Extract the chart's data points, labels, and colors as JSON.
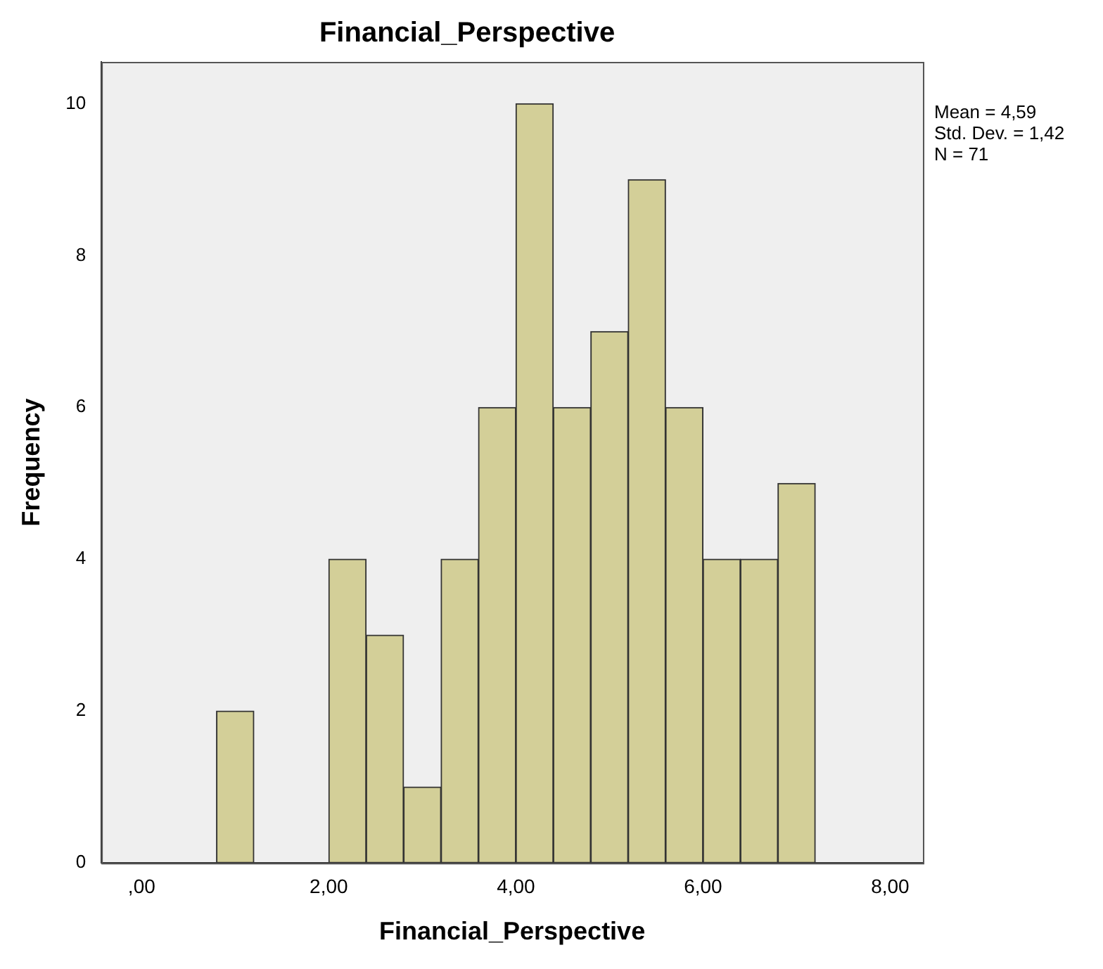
{
  "chart_data": {
    "type": "histogram",
    "title": "Financial_Perspective",
    "xlabel": "Financial_Perspective",
    "ylabel": "Frequency",
    "bins": [
      0.8,
      1.2,
      1.6,
      2.0,
      2.4,
      2.8,
      3.2,
      3.6,
      4.0,
      4.4,
      4.8,
      5.2,
      5.6,
      6.0,
      6.4,
      6.8,
      7.2
    ],
    "values": [
      2,
      0,
      0,
      4,
      3,
      1,
      4,
      6,
      10,
      6,
      7,
      9,
      6,
      4,
      4,
      5
    ],
    "color": "#d3cf98",
    "xlim": [
      -0.43,
      8.35
    ],
    "xticks": [
      {
        "value": 0,
        "label": ",00"
      },
      {
        "value": 2,
        "label": "2,00"
      },
      {
        "value": 4,
        "label": "4,00"
      },
      {
        "value": 6,
        "label": "6,00"
      },
      {
        "value": 8,
        "label": "8,00"
      }
    ],
    "ylim": [
      0,
      10.55
    ],
    "yticks": [
      0,
      2,
      4,
      6,
      8,
      10
    ],
    "grid": false,
    "legend": false,
    "annotations": [
      "Mean = 4,59",
      "Std. Dev. = 1,42",
      "N = 71"
    ]
  }
}
